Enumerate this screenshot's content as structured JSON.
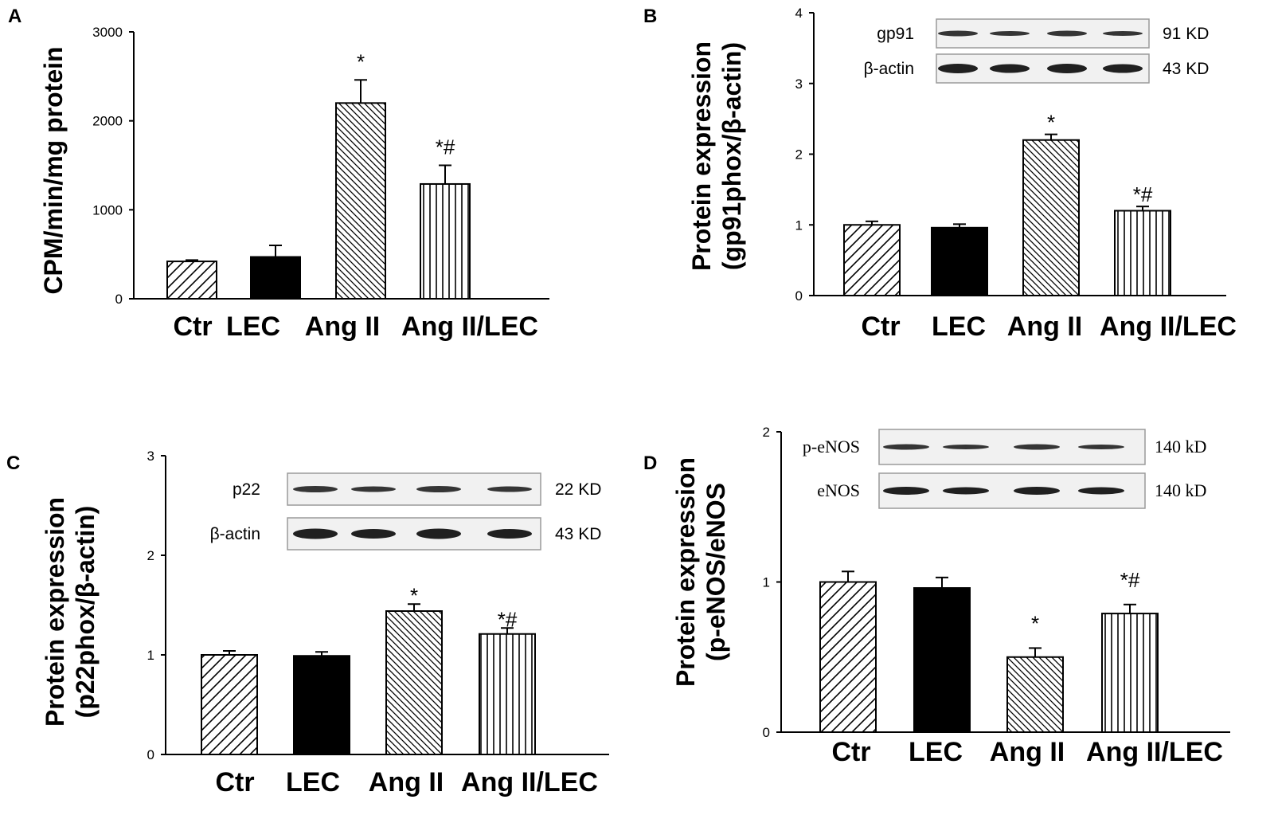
{
  "chart_data": [
    {
      "panel": "A",
      "type": "bar",
      "categories": [
        "Ctr",
        "LEC",
        "Ang II",
        "Ang II/LEC"
      ],
      "values": [
        420,
        470,
        2200,
        1290
      ],
      "errors": [
        15,
        130,
        260,
        210
      ],
      "significance": [
        "",
        "",
        "*",
        "*#"
      ],
      "ylabel": "CPM/min/mg protein",
      "ylim": [
        0,
        3000
      ],
      "yticks": [
        "0",
        "1000",
        "2000",
        "3000"
      ],
      "bar_patterns": [
        "diag-forward",
        "solid-black",
        "diag-back",
        "vertical-lines"
      ],
      "blot": null
    },
    {
      "panel": "B",
      "type": "bar",
      "categories": [
        "Ctr",
        "LEC",
        "Ang II",
        "Ang II/LEC"
      ],
      "values": [
        1.0,
        0.96,
        2.2,
        1.2
      ],
      "errors": [
        0.05,
        0.05,
        0.08,
        0.06
      ],
      "significance": [
        "",
        "",
        "*",
        "*#"
      ],
      "ylabel_lines": [
        "Protein expression",
        "(gp91phox/β-actin)"
      ],
      "ylim": [
        0,
        4
      ],
      "yticks": [
        "0",
        "1",
        "2",
        "3",
        "4"
      ],
      "bar_patterns": [
        "diag-forward",
        "solid-black",
        "diag-back",
        "vertical-lines"
      ],
      "blot": {
        "rows": [
          {
            "label": "gp91",
            "size": "91 KD"
          },
          {
            "label": "β-actin",
            "size": "43 KD"
          }
        ]
      }
    },
    {
      "panel": "C",
      "type": "bar",
      "categories": [
        "Ctr",
        "LEC",
        "Ang II",
        "Ang II/LEC"
      ],
      "values": [
        1.0,
        0.99,
        1.44,
        1.21
      ],
      "errors": [
        0.04,
        0.04,
        0.07,
        0.06
      ],
      "significance": [
        "",
        "",
        "*",
        "*#"
      ],
      "ylabel_lines": [
        "Protein expression",
        "(p22phox/β-actin)"
      ],
      "ylim": [
        0,
        3
      ],
      "yticks": [
        "0",
        "1",
        "2",
        "3"
      ],
      "bar_patterns": [
        "diag-forward",
        "solid-black",
        "diag-back",
        "vertical-lines"
      ],
      "blot": {
        "rows": [
          {
            "label": "p22",
            "size": "22 KD"
          },
          {
            "label": "β-actin",
            "size": "43 KD"
          }
        ]
      }
    },
    {
      "panel": "D",
      "type": "bar",
      "categories": [
        "Ctr",
        "LEC",
        "Ang II",
        "Ang II/LEC"
      ],
      "values": [
        1.0,
        0.96,
        0.5,
        0.79
      ],
      "errors": [
        0.07,
        0.07,
        0.06,
        0.06
      ],
      "significance": [
        "",
        "",
        "*",
        "*#"
      ],
      "ylabel_lines": [
        "Protein expression",
        "(p-eNOS/eNOS"
      ],
      "ylim": [
        0,
        2
      ],
      "yticks": [
        "0",
        "1",
        "2"
      ],
      "bar_patterns": [
        "diag-forward",
        "solid-black",
        "diag-back",
        "vertical-lines"
      ],
      "blot": {
        "rows": [
          {
            "label": "p-eNOS",
            "size": "140 kD"
          },
          {
            "label": "eNOS",
            "size": "140 kD"
          }
        ]
      }
    }
  ]
}
